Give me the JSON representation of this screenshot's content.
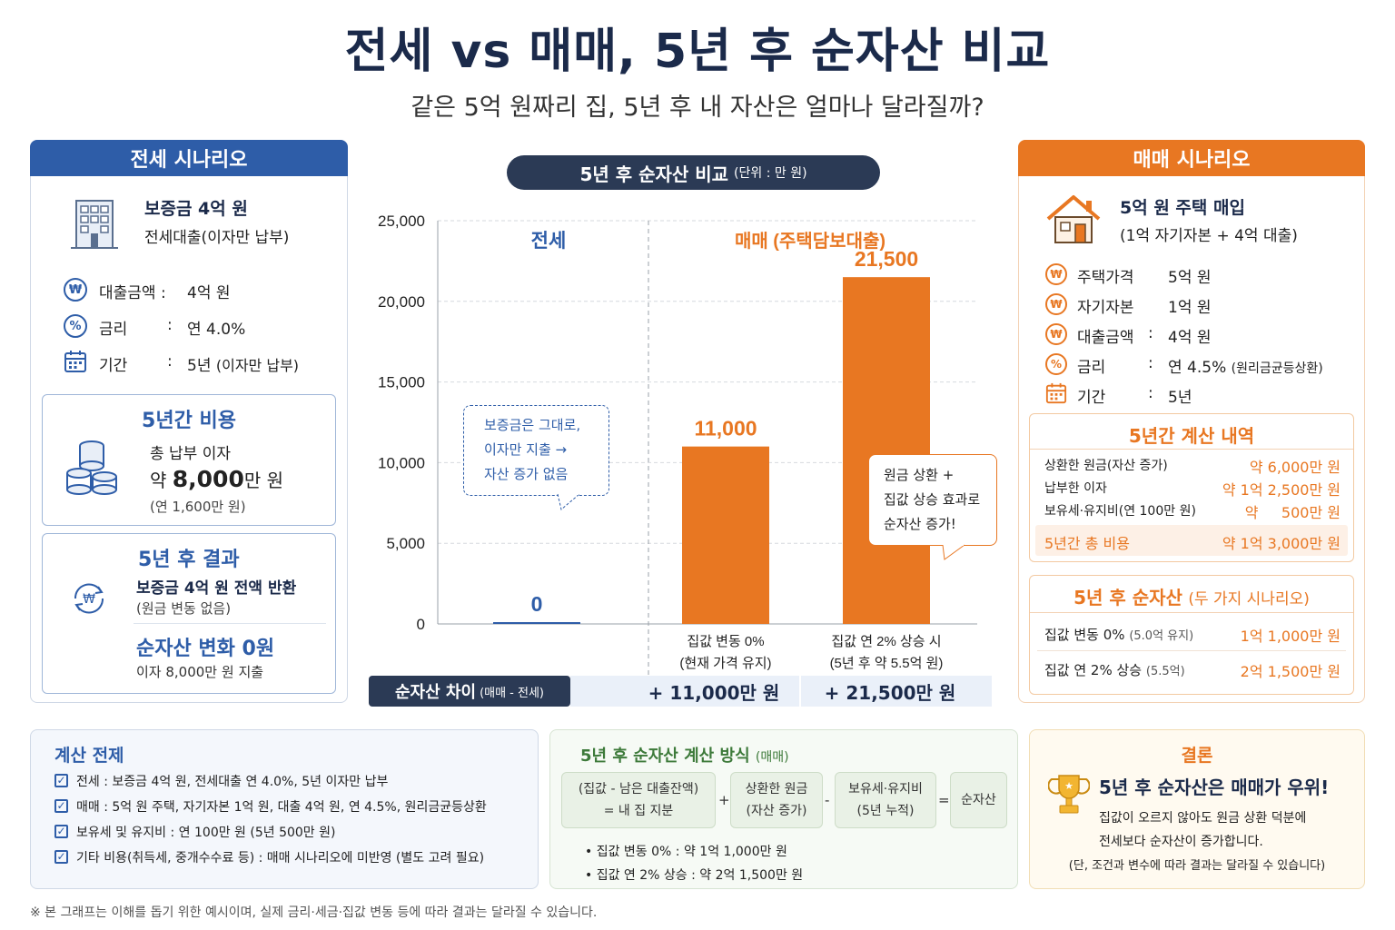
{
  "title": "전세 vs 매매, 5년 후 순자산 비교",
  "subtitle": "같은 5억 원짜리 집, 5년 후 내 자산은 얼마나 달라질까?",
  "jeonse": {
    "header": "전세 시나리오",
    "deposit": "보증금 4억 원",
    "loan_desc": "전세대출(이자만 납부)",
    "rows": [
      {
        "label": "대출금액 :",
        "value": "4억 원"
      },
      {
        "label": "금리",
        "colon": ":",
        "value": "연 4.0%"
      },
      {
        "label": "기간",
        "colon": ":",
        "value": "5년",
        "note": "(이자만 납부)"
      }
    ],
    "cost_title": "5년간 비용",
    "cost_line1": "총 납부 이자",
    "cost_prefix": "약 ",
    "cost_big": "8,000",
    "cost_suffix": "만 원",
    "cost_note": "(연 1,600만 원)",
    "result_title": "5년 후 결과",
    "result_line1": "보증금 4억 원 전액 반환",
    "result_line2": "(원금 변동 없음)",
    "net_title": "순자산 변화 0원",
    "net_note": "이자 8,000만 원 지출"
  },
  "chart_pill": {
    "title": "5년 후 순자산 비교",
    "unit": "(단위 : 만 원)"
  },
  "chart_data": {
    "type": "bar",
    "ylim": [
      0,
      25000
    ],
    "yticks": [
      "25,000",
      "20,000",
      "15,000",
      "10,000",
      "5,000",
      "0"
    ],
    "group_labels": {
      "jeonse": "전세",
      "maemae": "매매 (주택담보대출)"
    },
    "bars": [
      {
        "group": "전세",
        "value": 0,
        "label": "0",
        "color": "#2e5da8",
        "xlabel1": "",
        "xlabel2": ""
      },
      {
        "group": "매매",
        "value": 11000,
        "label": "11,000",
        "color": "#e87722",
        "xlabel1": "집값 변동 0%",
        "xlabel2": "(현재 가격 유지)"
      },
      {
        "group": "매매",
        "value": 21500,
        "label": "21,500",
        "color": "#e87722",
        "xlabel1": "집값 연 2% 상승 시",
        "xlabel2": "(5년 후 약 5.5억 원)"
      }
    ]
  },
  "callout_left": [
    "보증금은 그대로,",
    "이자만 지출 →",
    "자산 증가 없음"
  ],
  "callout_right": [
    "원금 상환 +",
    "집값 상승 효과로",
    "순자산 증가!"
  ],
  "diff": {
    "label": "순자산 차이",
    "label_small": "(매매 - 전세)",
    "val1": "+ 11,000만 원",
    "val2": "+ 21,500만 원"
  },
  "maemae": {
    "header": "매매 시나리오",
    "buy": "5억 원 주택 매입",
    "buy_desc": "(1억 자기자본 + 4억 대출)",
    "rows": [
      {
        "label": "주택가격",
        "colon": "",
        "value": "5억 원"
      },
      {
        "label": "자기자본",
        "colon": "",
        "value": "1억 원"
      },
      {
        "label": "대출금액",
        "colon": ":",
        "value": "4억 원"
      },
      {
        "label": "금리",
        "colon": ":",
        "value": "연 4.5%",
        "note": "(원리금균등상환)"
      },
      {
        "label": "기간",
        "colon": ":",
        "value": "5년"
      }
    ],
    "calc_title": "5년간 계산 내역",
    "calc_rows": [
      {
        "label": "상환한 원금(자산 증가)",
        "value": "약 6,000만 원"
      },
      {
        "label": "납부한 이자",
        "value": "약 1억 2,500만 원"
      },
      {
        "label": "보유세·유지비(연 100만 원)",
        "value": "약     500만 원"
      }
    ],
    "calc_total_label": "5년간 총 비용",
    "calc_total_value": "약 1억 3,000만 원",
    "net_title": "5년 후 순자산",
    "net_title_small": "(두 가지 시나리오)",
    "net_rows": [
      {
        "label": "집값 변동 0%",
        "note": "(5.0억 유지)",
        "value": "1억 1,000만 원"
      },
      {
        "label": "집값 연 2% 상승",
        "note": "(5.5억)",
        "value": "2억 1,500만 원"
      }
    ]
  },
  "premise": {
    "title": "계산 전제",
    "items": [
      "전세 : 보증금 4억 원, 전세대출 연 4.0%, 5년 이자만 납부",
      "매매 : 5억 원 주택, 자기자본 1억 원, 대출 4억 원, 연 4.5%, 원리금균등상환",
      "보유세 및 유지비 : 연 100만 원 (5년 500만 원)",
      "기타 비용(취득세, 중개수수료 등) : 매매 시나리오에 미반영 (별도 고려 필요)"
    ]
  },
  "method": {
    "title": "5년 후 순자산 계산 방식",
    "title_small": "(매매)",
    "box1": [
      "(집값 - 남은 대출잔액)",
      "= 내 집 지분"
    ],
    "op1": "+",
    "box2": [
      "상환한 원금",
      "(자산 증가)"
    ],
    "op2": "-",
    "box3": [
      "보유세·유지비",
      "(5년 누적)"
    ],
    "op3": "=",
    "box4": "순자산",
    "bullets": [
      "집값 변동 0% : 약 1억 1,000만 원",
      "집값 연 2% 상승 : 약 2억 1,500만 원"
    ]
  },
  "conclusion": {
    "title": "결론",
    "headline": "5년 후 순자산은 매매가 우위!",
    "line1": "집값이 오르지 않아도 원금 상환 덕분에",
    "line2": "전세보다 순자산이 증가합니다.",
    "line3": "(단, 조건과 변수에 따라 결과는 달라질 수 있습니다)"
  },
  "footnote": "※ 본 그래프는 이해를 돕기 위한 예시이며, 실제 금리·세금·집값 변동 등에 따라 결과는 달라질 수 있습니다.",
  "colors": {
    "navy": "#1b2a4a",
    "blue": "#2e5da8",
    "orange": "#e87722",
    "pill": "#2b3a55"
  }
}
